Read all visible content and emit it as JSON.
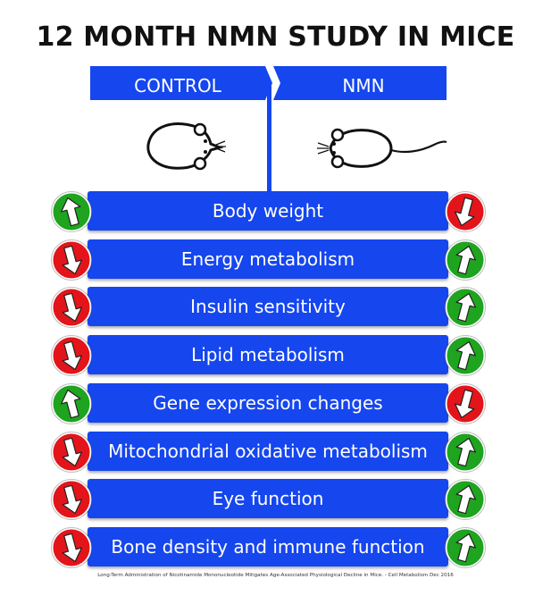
{
  "title": "12 MONTH NMN STUDY IN MICE",
  "header": {
    "left_label": "CONTROL",
    "right_label": "NMN"
  },
  "colors": {
    "bar_blue": "#1546ee",
    "down_red": "#e4141b",
    "up_green": "#1ea41e"
  },
  "icons": {
    "left_mouse": "mouse-top-view-icon",
    "right_mouse": "mouse-with-tail-icon"
  },
  "rows": [
    {
      "label": "Body weight",
      "control": "up",
      "nmn": "down"
    },
    {
      "label": "Energy metabolism",
      "control": "down",
      "nmn": "up"
    },
    {
      "label": "Insulin sensitivity",
      "control": "down",
      "nmn": "up"
    },
    {
      "label": "Lipid metabolism",
      "control": "down",
      "nmn": "up"
    },
    {
      "label": "Gene expression changes",
      "control": "up",
      "nmn": "down"
    },
    {
      "label": "Mitochondrial oxidative metabolism",
      "control": "down",
      "nmn": "up"
    },
    {
      "label": "Eye function",
      "control": "down",
      "nmn": "up"
    },
    {
      "label": "Bone density and immune function",
      "control": "down",
      "nmn": "up"
    }
  ],
  "citation": "Long-Term Administration of Nicotinamide Mononucleotide Mitigates Age-Associated Physiological Decline in Mice. - Cell Metabolism Dec 2016"
}
